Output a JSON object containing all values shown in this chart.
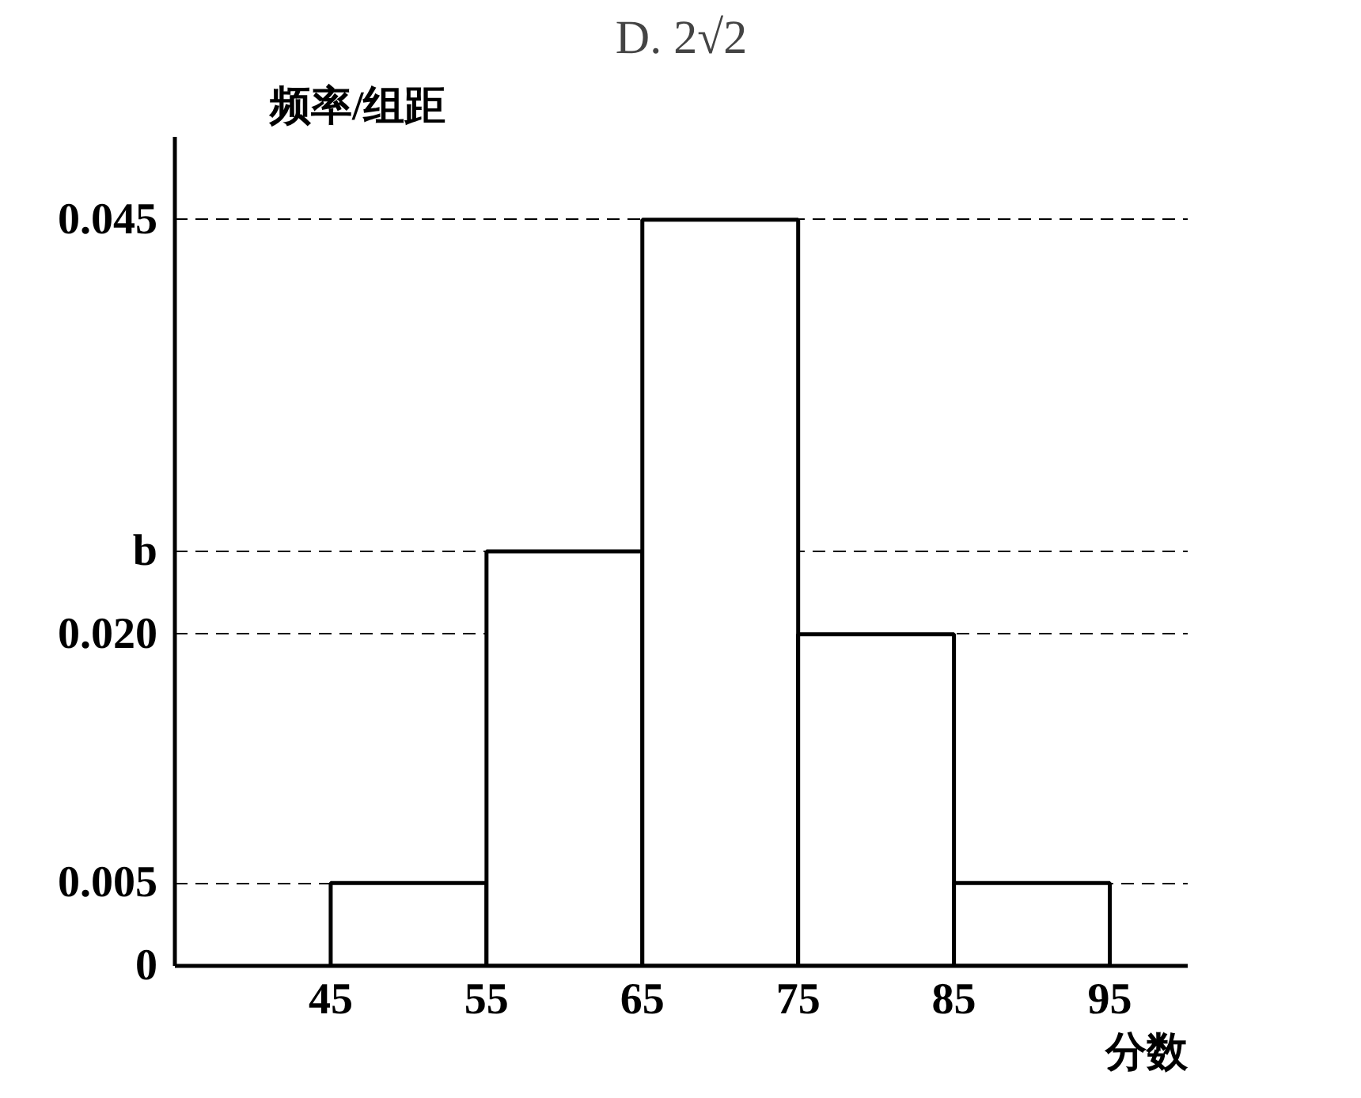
{
  "chart_data": {
    "type": "histogram",
    "title": "D. 2√2",
    "xlabel": "分数",
    "ylabel": "频率/组距",
    "bins": [
      45,
      55,
      65,
      75,
      85,
      95
    ],
    "values": [
      0.005,
      0.025,
      0.045,
      0.02,
      0.005
    ],
    "color": "#ffffff",
    "xlim": [
      35,
      100
    ],
    "ylim": [
      0,
      0.05
    ],
    "xticks": [
      45,
      55,
      65,
      75,
      85,
      95
    ],
    "yticks": [
      {
        "value": 0,
        "label": "0"
      },
      0.005,
      {
        "value": 0.02,
        "label": "0.020"
      },
      {
        "value": 0.025,
        "label": "b"
      },
      0.045
    ],
    "grid": "y",
    "line_style": "dashed"
  }
}
